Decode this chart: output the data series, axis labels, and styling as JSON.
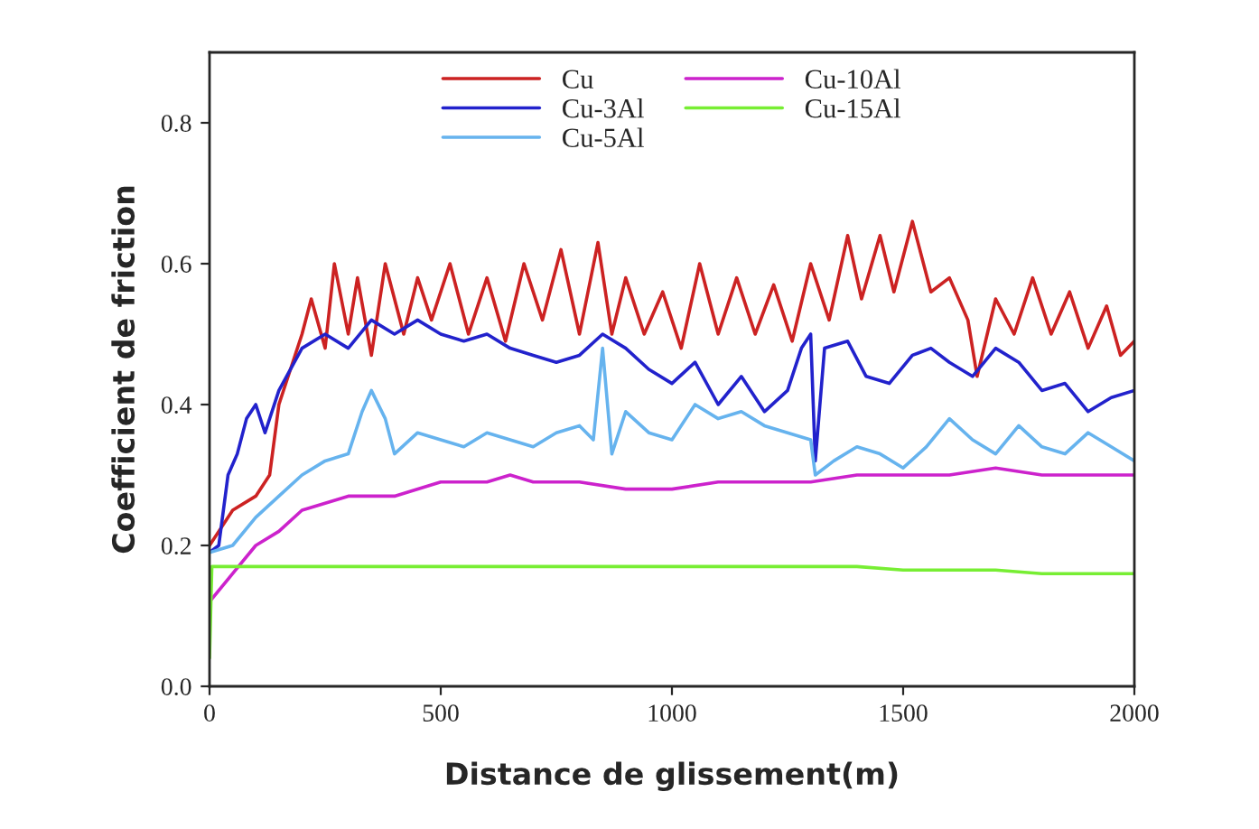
{
  "chart_data": {
    "type": "line",
    "xlabel": "Distance de glissement(m)",
    "ylabel": "Coefficient de friction",
    "xlim": [
      0,
      2000
    ],
    "ylim": [
      0,
      0.9
    ],
    "xticks": [
      0,
      500,
      1000,
      1500,
      2000
    ],
    "yticks": [
      {
        "value": 0,
        "label": "0.0"
      },
      0.2,
      0.4,
      0.6,
      0.8
    ],
    "legend": "top",
    "grid": false,
    "series": [
      {
        "name": "Cu",
        "color": "#cc2222",
        "x": [
          0,
          50,
          100,
          130,
          150,
          200,
          220,
          250,
          270,
          300,
          320,
          350,
          380,
          420,
          450,
          480,
          520,
          560,
          600,
          640,
          680,
          720,
          760,
          800,
          840,
          870,
          900,
          940,
          980,
          1020,
          1060,
          1100,
          1140,
          1180,
          1220,
          1260,
          1300,
          1340,
          1380,
          1410,
          1450,
          1480,
          1520,
          1560,
          1600,
          1640,
          1660,
          1700,
          1740,
          1780,
          1820,
          1860,
          1900,
          1940,
          1970,
          2000
        ],
        "values": [
          0.2,
          0.25,
          0.27,
          0.3,
          0.4,
          0.5,
          0.55,
          0.48,
          0.6,
          0.5,
          0.58,
          0.47,
          0.6,
          0.5,
          0.58,
          0.52,
          0.6,
          0.5,
          0.58,
          0.49,
          0.6,
          0.52,
          0.62,
          0.5,
          0.63,
          0.5,
          0.58,
          0.5,
          0.56,
          0.48,
          0.6,
          0.5,
          0.58,
          0.5,
          0.57,
          0.49,
          0.6,
          0.52,
          0.64,
          0.55,
          0.64,
          0.56,
          0.66,
          0.56,
          0.58,
          0.52,
          0.44,
          0.55,
          0.5,
          0.58,
          0.5,
          0.56,
          0.48,
          0.54,
          0.47,
          0.49
        ]
      },
      {
        "name": "Cu-3Al",
        "color": "#2222cc",
        "x": [
          0,
          20,
          40,
          60,
          80,
          100,
          120,
          150,
          200,
          250,
          300,
          350,
          400,
          450,
          500,
          550,
          600,
          650,
          700,
          750,
          800,
          850,
          900,
          950,
          1000,
          1050,
          1100,
          1150,
          1200,
          1250,
          1280,
          1300,
          1310,
          1330,
          1380,
          1420,
          1470,
          1520,
          1560,
          1600,
          1650,
          1700,
          1750,
          1800,
          1850,
          1900,
          1950,
          2000
        ],
        "values": [
          0.19,
          0.2,
          0.3,
          0.33,
          0.38,
          0.4,
          0.36,
          0.42,
          0.48,
          0.5,
          0.48,
          0.52,
          0.5,
          0.52,
          0.5,
          0.49,
          0.5,
          0.48,
          0.47,
          0.46,
          0.47,
          0.5,
          0.48,
          0.45,
          0.43,
          0.46,
          0.4,
          0.44,
          0.39,
          0.42,
          0.48,
          0.5,
          0.32,
          0.48,
          0.49,
          0.44,
          0.43,
          0.47,
          0.48,
          0.46,
          0.44,
          0.48,
          0.46,
          0.42,
          0.43,
          0.39,
          0.41,
          0.42
        ]
      },
      {
        "name": "Cu-5Al",
        "color": "#66b3ee",
        "x": [
          0,
          50,
          100,
          150,
          200,
          250,
          300,
          330,
          350,
          380,
          400,
          450,
          500,
          550,
          600,
          650,
          700,
          750,
          800,
          830,
          850,
          870,
          900,
          950,
          1000,
          1050,
          1100,
          1150,
          1200,
          1250,
          1300,
          1310,
          1350,
          1400,
          1450,
          1500,
          1550,
          1600,
          1650,
          1700,
          1750,
          1800,
          1850,
          1900,
          1950,
          2000
        ],
        "values": [
          0.19,
          0.2,
          0.24,
          0.27,
          0.3,
          0.32,
          0.33,
          0.39,
          0.42,
          0.38,
          0.33,
          0.36,
          0.35,
          0.34,
          0.36,
          0.35,
          0.34,
          0.36,
          0.37,
          0.35,
          0.48,
          0.33,
          0.39,
          0.36,
          0.35,
          0.4,
          0.38,
          0.39,
          0.37,
          0.36,
          0.35,
          0.3,
          0.32,
          0.34,
          0.33,
          0.31,
          0.34,
          0.38,
          0.35,
          0.33,
          0.37,
          0.34,
          0.33,
          0.36,
          0.34,
          0.32
        ]
      },
      {
        "name": "Cu-10Al",
        "color": "#cc22cc",
        "x": [
          0,
          50,
          100,
          150,
          200,
          300,
          400,
          500,
          600,
          650,
          700,
          800,
          900,
          1000,
          1100,
          1200,
          1300,
          1400,
          1500,
          1600,
          1700,
          1800,
          1900,
          2000
        ],
        "values": [
          0.12,
          0.16,
          0.2,
          0.22,
          0.25,
          0.27,
          0.27,
          0.29,
          0.29,
          0.3,
          0.29,
          0.29,
          0.28,
          0.28,
          0.29,
          0.29,
          0.29,
          0.3,
          0.3,
          0.3,
          0.31,
          0.3,
          0.3,
          0.3
        ]
      },
      {
        "name": "Cu-15Al",
        "color": "#77ee33",
        "x": [
          0,
          5,
          100,
          300,
          500,
          700,
          900,
          1050,
          1200,
          1400,
          1500,
          1600,
          1700,
          1800,
          1900,
          2000
        ],
        "values": [
          0.04,
          0.17,
          0.17,
          0.17,
          0.17,
          0.17,
          0.17,
          0.17,
          0.17,
          0.17,
          0.165,
          0.165,
          0.165,
          0.16,
          0.16,
          0.16
        ]
      }
    ]
  }
}
